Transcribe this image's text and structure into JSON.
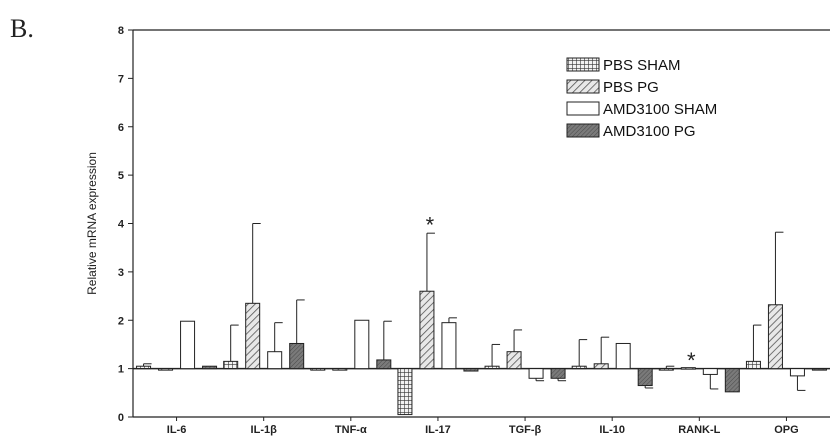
{
  "panel_label": "B.",
  "chart_data": {
    "type": "bar",
    "ylabel": "Relative mRNA expression",
    "ylim": [
      0,
      8
    ],
    "yticks": [
      0,
      1,
      2,
      3,
      4,
      5,
      6,
      7,
      8
    ],
    "baseline": 1,
    "categories": [
      "IL-6",
      "IL-1β",
      "TNF-α",
      "IL-17",
      "TGF-β",
      "IL-10",
      "RANK-L",
      "OPG"
    ],
    "legend_position": "top-right",
    "series": [
      {
        "name": "PBS SHAM",
        "pattern": "grid",
        "values": [
          1.05,
          1.15,
          1.0,
          0.05,
          1.05,
          1.05,
          1.0,
          1.15
        ],
        "errors": [
          0.05,
          0.75,
          0.0,
          0.0,
          0.45,
          0.55,
          0.05,
          0.75
        ]
      },
      {
        "name": "PBS PG",
        "pattern": "hatch",
        "values": [
          1.0,
          2.35,
          1.0,
          2.6,
          1.35,
          1.1,
          1.02,
          2.32
        ],
        "errors": [
          0.0,
          1.65,
          0.0,
          1.2,
          0.45,
          0.55,
          0.0,
          1.5
        ]
      },
      {
        "name": "AMD3100 SHAM",
        "pattern": "white",
        "values": [
          1.98,
          1.35,
          2.0,
          1.95,
          0.8,
          1.52,
          0.88,
          0.85
        ],
        "errors": [
          0.0,
          0.6,
          0.0,
          0.1,
          0.05,
          0.0,
          0.3,
          0.3
        ]
      },
      {
        "name": "AMD3100 PG",
        "pattern": "dark",
        "values": [
          1.05,
          1.52,
          1.18,
          0.95,
          0.8,
          0.65,
          0.52,
          1.0
        ],
        "errors": [
          0.0,
          0.9,
          0.8,
          0.0,
          0.05,
          0.05,
          0.0,
          0.0
        ]
      }
    ],
    "annotations": [
      {
        "text": "*",
        "category": "IL-17",
        "y": 4.1
      },
      {
        "text": "*",
        "category": "RANK-L",
        "y": 1.3
      }
    ]
  }
}
